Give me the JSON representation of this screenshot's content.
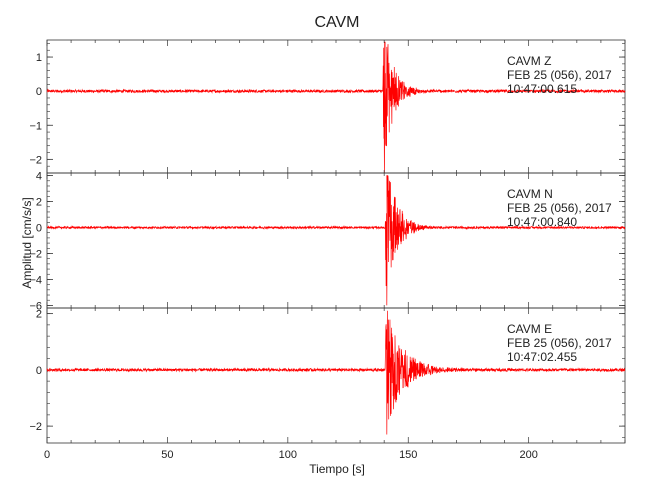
{
  "chart_data": {
    "type": "line",
    "title": "CAVM",
    "xlabel": "Tiempo [s]",
    "ylabel": "Amplitud [cm/s/s]",
    "xlim": [
      0,
      240
    ],
    "x_ticks": [
      0,
      50,
      100,
      150,
      200
    ],
    "grid": false,
    "line_color": "#ff0000",
    "series": [
      {
        "name": "CAVM  Z",
        "date": "FEB 25 (056), 2017",
        "time": "10:47:00.615",
        "ylim": [
          -2.4,
          1.5
        ],
        "y_ticks": [
          1,
          0,
          -1,
          -2
        ],
        "onset": 139.5,
        "peak_pos": 1.45,
        "peak_neg": -2.4,
        "noise": 0.04,
        "decay_s": 4
      },
      {
        "name": "CAVM  N",
        "date": "FEB 25 (056), 2017",
        "time": "10:47:00.840",
        "ylim": [
          -6.2,
          4.2
        ],
        "y_ticks": [
          4,
          2,
          0,
          -2,
          -4,
          -6
        ],
        "onset": 140.5,
        "peak_pos": 4.0,
        "peak_neg": -6.0,
        "noise": 0.08,
        "decay_s": 4.5
      },
      {
        "name": "CAVM  E",
        "date": "FEB 25 (056), 2017",
        "time": "10:47:02.455",
        "ylim": [
          -2.6,
          2.2
        ],
        "y_ticks": [
          2,
          0,
          -2
        ],
        "onset": 140.5,
        "peak_pos": 2.1,
        "peak_neg": -2.3,
        "noise": 0.05,
        "decay_s": 7
      }
    ]
  }
}
